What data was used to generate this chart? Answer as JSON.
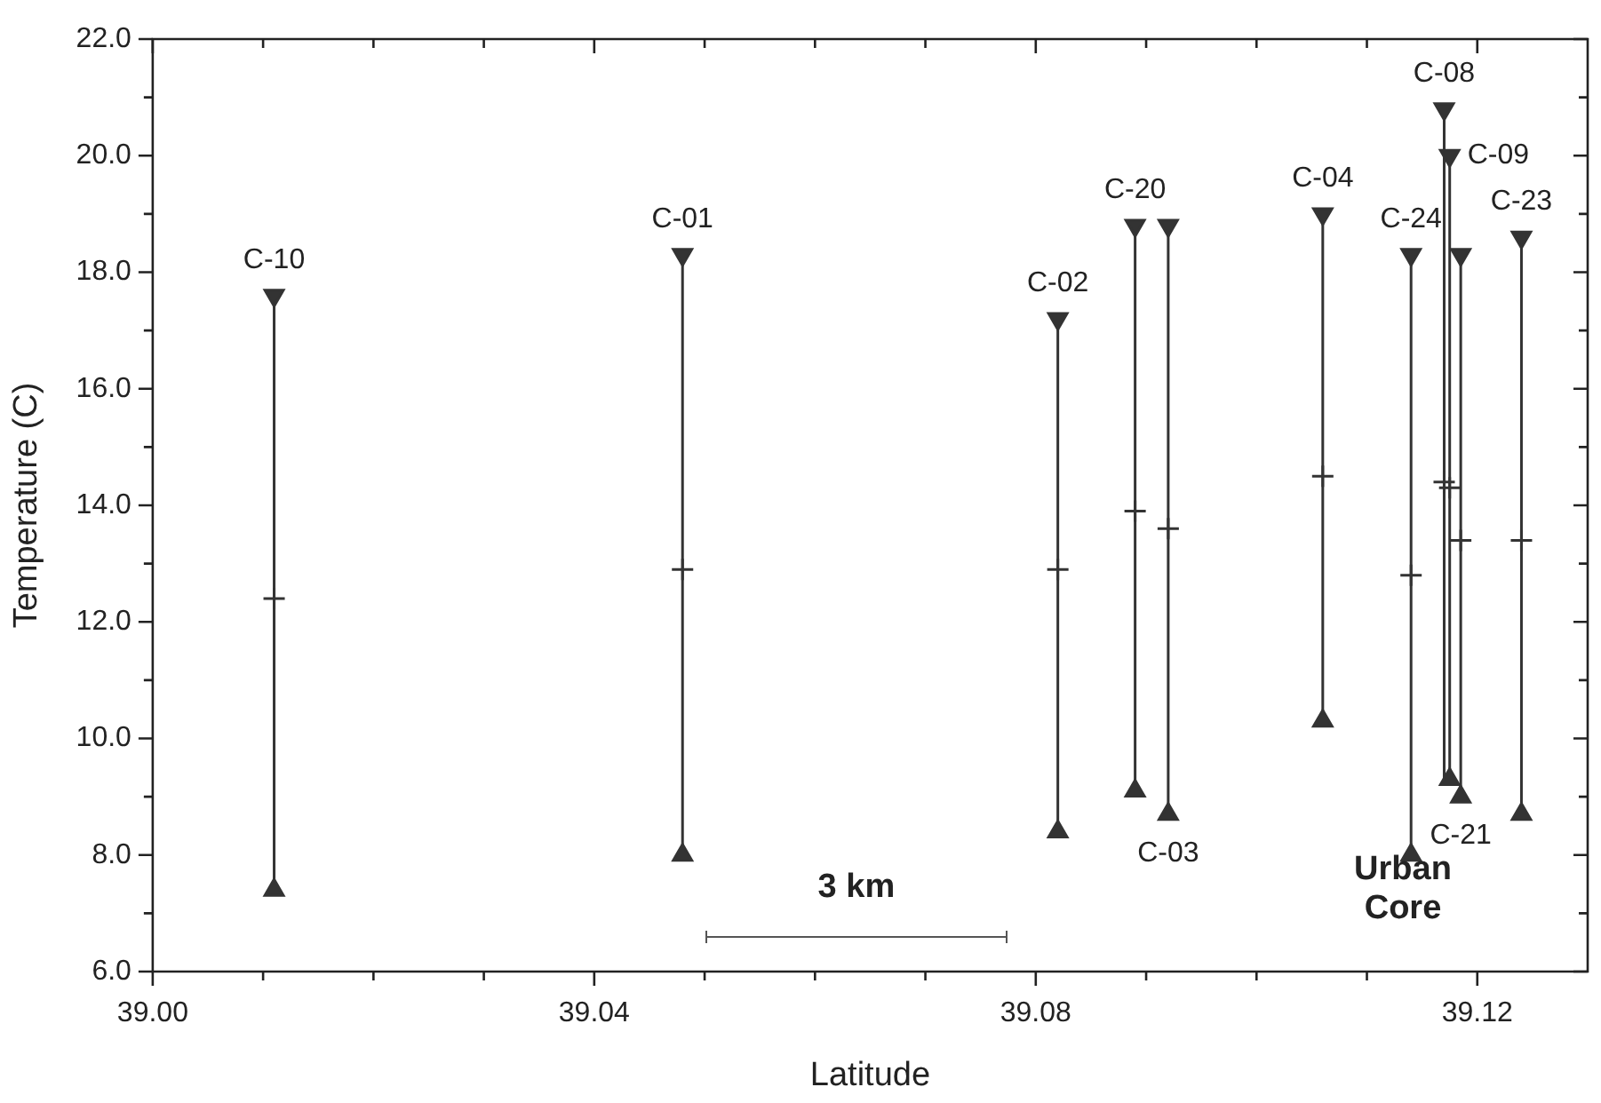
{
  "chart_data": {
    "type": "scatter",
    "xlabel": "Latitude",
    "ylabel": "Temperature (C)",
    "x": [
      39.011,
      39.048,
      39.082,
      39.089,
      39.092,
      39.106,
      39.114,
      39.117,
      39.1175,
      39.1185,
      39.124
    ],
    "series": [
      {
        "color": "#333333",
        "marker": "cross",
        "values": [
          12.4,
          12.9,
          12.9,
          13.9,
          13.6,
          14.5,
          12.8,
          14.4,
          14.3,
          13.4,
          13.4
        ],
        "errors": [
          [
            7.4,
            17.6
          ],
          [
            8.0,
            18.3
          ],
          [
            8.4,
            17.2
          ],
          [
            9.1,
            18.8
          ],
          [
            8.7,
            18.8
          ],
          [
            10.3,
            19.0
          ],
          [
            8.0,
            18.3
          ],
          [
            9.3,
            20.8
          ],
          [
            9.3,
            20.0
          ],
          [
            9.0,
            18.3
          ],
          [
            8.7,
            18.6
          ]
        ]
      },
      {
        "color": "#333333",
        "marker": "triangle",
        "values": [
          17.6,
          18.3,
          17.2,
          18.8,
          18.8,
          19.0,
          18.3,
          20.8,
          20.0,
          18.3,
          18.6
        ]
      },
      {
        "color": "#333333",
        "marker": "triangle",
        "values": [
          7.4,
          8.0,
          8.4,
          9.1,
          8.7,
          10.3,
          8.0,
          null,
          9.3,
          9.0,
          8.7
        ]
      }
    ],
    "xlim": [
      39.0,
      39.13
    ],
    "xticks": [
      {
        "value": 39.0,
        "label": "39.00"
      },
      {
        "value": 39.01,
        "label": null
      },
      {
        "value": 39.02,
        "label": null
      },
      {
        "value": 39.03,
        "label": null
      },
      {
        "value": 39.04,
        "label": "39.04"
      },
      {
        "value": 39.05,
        "label": null
      },
      {
        "value": 39.06,
        "label": null
      },
      {
        "value": 39.07,
        "label": null
      },
      {
        "value": 39.08,
        "label": "39.08"
      },
      {
        "value": 39.09,
        "label": null
      },
      {
        "value": 39.1,
        "label": null
      },
      {
        "value": 39.11,
        "label": null
      },
      {
        "value": 39.12,
        "label": "39.12"
      }
    ],
    "ylim": [
      6,
      22
    ],
    "yticks": [
      {
        "value": 6,
        "label": "6.0"
      },
      {
        "value": 7,
        "label": null
      },
      {
        "value": 8,
        "label": "8.0"
      },
      {
        "value": 9,
        "label": null
      },
      {
        "value": 10,
        "label": "10.0"
      },
      {
        "value": 11,
        "label": null
      },
      {
        "value": 12,
        "label": "12.0"
      },
      {
        "value": 13,
        "label": null
      },
      {
        "value": 14,
        "label": "14.0"
      },
      {
        "value": 15,
        "label": null
      },
      {
        "value": 16,
        "label": "16.0"
      },
      {
        "value": 17,
        "label": null
      },
      {
        "value": 18,
        "label": "18.0"
      },
      {
        "value": 19,
        "label": null
      },
      {
        "value": 20,
        "label": "20.0"
      },
      {
        "value": 21,
        "label": null
      },
      {
        "value": 22,
        "label": "22.0"
      }
    ],
    "grid": false,
    "legend": false,
    "annotations": [
      {
        "text": "C-10",
        "x": 39.011,
        "y": 17.6
      },
      {
        "text": "C-01",
        "x": 39.048,
        "y": 18.3
      },
      {
        "text": "C-02",
        "x": 39.082,
        "y": 17.2
      },
      {
        "text": "C-20",
        "x": 39.089,
        "y": 18.8
      },
      {
        "text": "C-03",
        "x": 39.092,
        "y": 8.7
      },
      {
        "text": "C-04",
        "x": 39.106,
        "y": 19.0
      },
      {
        "text": "C-24",
        "x": 39.114,
        "y": 18.3
      },
      {
        "text": "C-08",
        "x": 39.117,
        "y": 20.8
      },
      {
        "text": "C-09",
        "x": 39.1175,
        "y": 20.0
      },
      {
        "text": "C-23",
        "x": 39.124,
        "y": 18.6
      },
      {
        "text": "C-21",
        "x": 39.1185,
        "y": 9.0
      },
      "3 km",
      "Urban Core"
    ]
  }
}
